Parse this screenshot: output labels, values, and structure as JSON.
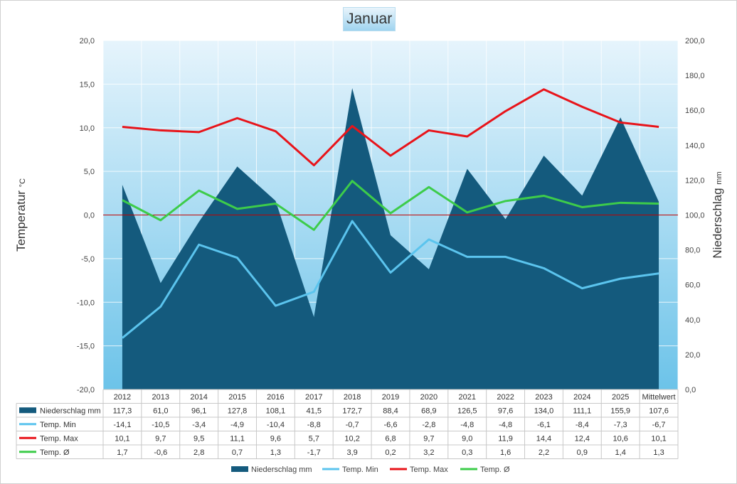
{
  "chart_data": {
    "type": "area+line",
    "title": "Januar",
    "categories": [
      "2012",
      "2013",
      "2014",
      "2015",
      "2016",
      "2017",
      "2018",
      "2019",
      "2020",
      "2021",
      "2022",
      "2023",
      "2024",
      "2025",
      "Mittelwert"
    ],
    "y_left": {
      "label": "Temperatur",
      "unit": "°C",
      "min": -20,
      "max": 20,
      "step": 5,
      "ticks": [
        "20,0",
        "15,0",
        "10,0",
        "5,0",
        "0,0",
        "-5,0",
        "-10,0",
        "-15,0",
        "-20,0"
      ]
    },
    "y_right": {
      "label": "Niederschlag",
      "unit": "mm",
      "min": 0,
      "max": 200,
      "step": 20,
      "ticks": [
        "200,0",
        "180,0",
        "160,0",
        "140,0",
        "120,0",
        "100,0",
        "80,0",
        "60,0",
        "40,0",
        "20,0",
        "0,0"
      ]
    },
    "grid": true,
    "legend_position": "bottom",
    "series": [
      {
        "name": "Niederschlag mm",
        "kind": "area",
        "axis": "right",
        "color": "#145a7d",
        "values": [
          117.3,
          61.0,
          96.1,
          127.8,
          108.1,
          41.5,
          172.7,
          88.4,
          68.9,
          126.5,
          97.6,
          134.0,
          111.1,
          155.9,
          107.6
        ],
        "labels": [
          "117,3",
          "61,0",
          "96,1",
          "127,8",
          "108,1",
          "41,5",
          "172,7",
          "88,4",
          "68,9",
          "126,5",
          "97,6",
          "134,0",
          "111,1",
          "155,9",
          "107,6"
        ]
      },
      {
        "name": "Temp. Min",
        "kind": "line",
        "axis": "left",
        "color": "#5bc4ee",
        "values": [
          -14.1,
          -10.5,
          -3.4,
          -4.9,
          -10.4,
          -8.8,
          -0.7,
          -6.6,
          -2.8,
          -4.8,
          -4.8,
          -6.1,
          -8.4,
          -7.3,
          -6.7
        ],
        "labels": [
          "-14,1",
          "-10,5",
          "-3,4",
          "-4,9",
          "-10,4",
          "-8,8",
          "-0,7",
          "-6,6",
          "-2,8",
          "-4,8",
          "-4,8",
          "-6,1",
          "-8,4",
          "-7,3",
          "-6,7"
        ]
      },
      {
        "name": "Temp. Max",
        "kind": "line",
        "axis": "left",
        "color": "#e8141a",
        "values": [
          10.1,
          9.7,
          9.5,
          11.1,
          9.6,
          5.7,
          10.2,
          6.8,
          9.7,
          9.0,
          11.9,
          14.4,
          12.4,
          10.6,
          10.1
        ],
        "labels": [
          "10,1",
          "9,7",
          "9,5",
          "11,1",
          "9,6",
          "5,7",
          "10,2",
          "6,8",
          "9,7",
          "9,0",
          "11,9",
          "14,4",
          "12,4",
          "10,6",
          "10,1"
        ]
      },
      {
        "name": "Temp. Ø",
        "kind": "line",
        "axis": "left",
        "color": "#3dcc4a",
        "values": [
          1.7,
          -0.6,
          2.8,
          0.7,
          1.3,
          -1.7,
          3.9,
          0.2,
          3.2,
          0.3,
          1.6,
          2.2,
          0.9,
          1.4,
          1.3
        ],
        "labels": [
          "1,7",
          "-0,6",
          "2,8",
          "0,7",
          "1,3",
          "-1,7",
          "3,9",
          "0,2",
          "3,2",
          "0,3",
          "1,6",
          "2,2",
          "0,9",
          "1,4",
          "1,3"
        ]
      }
    ],
    "reference_line": {
      "y": 0,
      "axis": "left",
      "color": "#c00000"
    }
  }
}
